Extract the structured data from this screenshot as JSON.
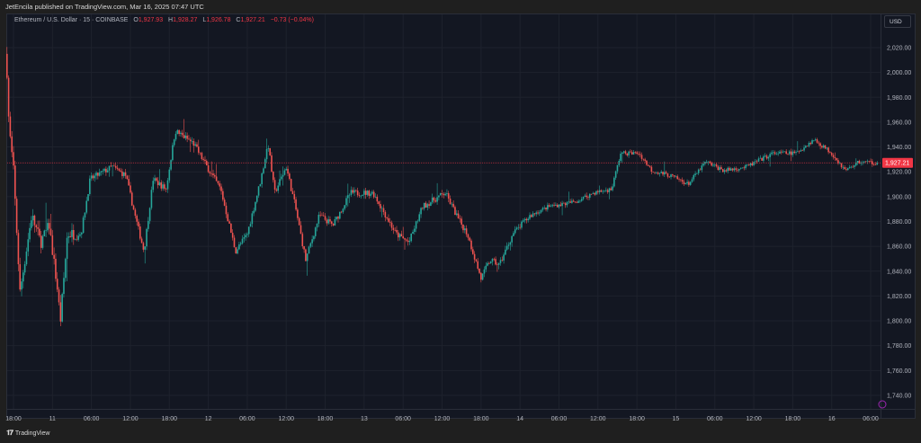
{
  "header": {
    "published": "JetEncila published on TradingView.com, Mar 16, 2025 07:47 UTC"
  },
  "legend": {
    "symbol": "Ethereum / U.S. Dollar · 15 · COINBASE",
    "o_label": "O",
    "o": "1,927.93",
    "h_label": "H",
    "h": "1,928.27",
    "l_label": "L",
    "l": "1,926.78",
    "c_label": "C",
    "c": "1,927.21",
    "change": "−0.73 (−0.04%)"
  },
  "currency_button": "USD",
  "footer": {
    "logo": "TV",
    "brand": "TradingView"
  },
  "colors": {
    "up": "#26a69a",
    "down": "#ef5350",
    "bg": "#131722",
    "grid": "#1e222d",
    "last": "#f23645"
  },
  "chart_data": {
    "type": "candlestick",
    "interval": "15m",
    "x_start_label": "Mar 10 18:00",
    "x_unit": "hours since Mar 10 18:00",
    "ylim": [
      1730,
      2030
    ],
    "y_ticks": [
      "2,020.00",
      "2,000.00",
      "1,980.00",
      "1,960.00",
      "1,940.00",
      "1,920.00",
      "1,900.00",
      "1,880.00",
      "1,860.00",
      "1,840.00",
      "1,820.00",
      "1,800.00",
      "1,780.00",
      "1,760.00",
      "1,740.00"
    ],
    "y_tick_values": [
      2020,
      2000,
      1980,
      1960,
      1940,
      1920,
      1900,
      1880,
      1860,
      1840,
      1820,
      1800,
      1780,
      1760,
      1740
    ],
    "x_ticks": [
      "18:00",
      "11",
      "06:00",
      "12:00",
      "18:00",
      "12",
      "06:00",
      "12:00",
      "18:00",
      "13",
      "06:00",
      "12:00",
      "18:00",
      "14",
      "06:00",
      "12:00",
      "18:00",
      "15",
      "06:00",
      "12:00",
      "18:00",
      "16",
      "06:00"
    ],
    "last_price": 1927.21,
    "last_price_label": "1,927.21",
    "price_path": [
      [
        -1.1,
        2015
      ],
      [
        -0.7,
        1957
      ],
      [
        0,
        1921
      ],
      [
        1,
        1823
      ],
      [
        2.8,
        1885
      ],
      [
        4.2,
        1863
      ],
      [
        5.5,
        1877
      ],
      [
        6.9,
        1820
      ],
      [
        7.2,
        1798
      ],
      [
        8.3,
        1870
      ],
      [
        10.4,
        1870
      ],
      [
        11.8,
        1914
      ],
      [
        15.2,
        1924
      ],
      [
        17.3,
        1917
      ],
      [
        18.7,
        1885
      ],
      [
        20.1,
        1856
      ],
      [
        21.5,
        1914
      ],
      [
        23.5,
        1906
      ],
      [
        24.9,
        1953
      ],
      [
        27.7,
        1943
      ],
      [
        29.8,
        1924
      ],
      [
        31.9,
        1906
      ],
      [
        34.2,
        1856
      ],
      [
        36,
        1870
      ],
      [
        38.1,
        1914
      ],
      [
        39.2,
        1943
      ],
      [
        40.2,
        1903
      ],
      [
        42,
        1924
      ],
      [
        43.4,
        1892
      ],
      [
        45,
        1849
      ],
      [
        47.1,
        1885
      ],
      [
        49.2,
        1877
      ],
      [
        51.9,
        1903
      ],
      [
        55.4,
        1903
      ],
      [
        58.9,
        1870
      ],
      [
        60.9,
        1863
      ],
      [
        63,
        1892
      ],
      [
        66.5,
        1903
      ],
      [
        68.6,
        1881
      ],
      [
        69.9,
        1870
      ],
      [
        72,
        1834
      ],
      [
        73.4,
        1849
      ],
      [
        74.8,
        1845
      ],
      [
        76.9,
        1870
      ],
      [
        79.6,
        1885
      ],
      [
        82.4,
        1892
      ],
      [
        86.6,
        1896
      ],
      [
        89.3,
        1903
      ],
      [
        92.1,
        1906
      ],
      [
        93.5,
        1935
      ],
      [
        96.3,
        1935
      ],
      [
        98.3,
        1921
      ],
      [
        101.1,
        1917
      ],
      [
        103.9,
        1910
      ],
      [
        106.6,
        1928
      ],
      [
        109.4,
        1921
      ],
      [
        112.9,
        1924
      ],
      [
        117,
        1935
      ],
      [
        120.5,
        1935
      ],
      [
        123.3,
        1946
      ],
      [
        126,
        1935
      ],
      [
        128.1,
        1921
      ],
      [
        130.2,
        1928
      ],
      [
        133,
        1927.21
      ]
    ]
  }
}
